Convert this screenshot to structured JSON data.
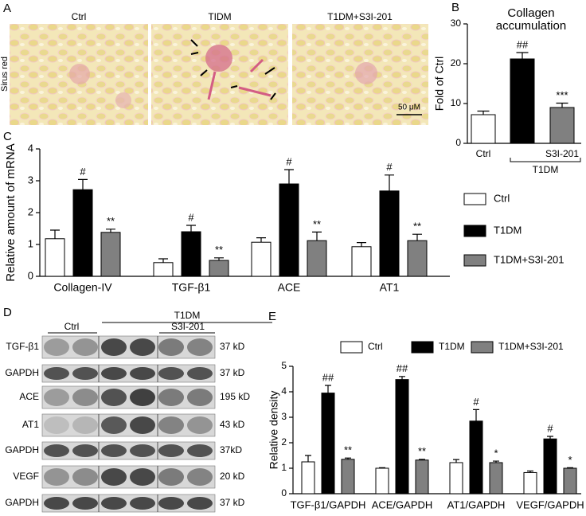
{
  "panel_a": {
    "label": "A",
    "images": [
      {
        "label": "Ctrl"
      },
      {
        "label": "TIDM"
      },
      {
        "label": "T1DM+S3I-201"
      }
    ],
    "stain": "Sirus red",
    "scale_bar": "50 μM"
  },
  "panel_d": {
    "label": "D",
    "header": {
      "group": "T1DM",
      "control": "Ctrl",
      "treated": "S3I-201"
    },
    "rows": [
      {
        "protein": "TGF-β1",
        "size": "37 kD"
      },
      {
        "protein": "GAPDH",
        "size": "37 kD"
      },
      {
        "protein": "ACE",
        "size": "195 kD"
      },
      {
        "protein": "AT1",
        "size": "43 kD"
      },
      {
        "protein": "GAPDH",
        "size": "37kD"
      },
      {
        "protein": "VEGF",
        "size": "20 kD"
      },
      {
        "protein": "GAPDH",
        "size": "37 kD"
      }
    ]
  },
  "chart_data": [
    {
      "type": "bar",
      "panel_label": "B",
      "title": [
        "Collagen",
        "accumulation"
      ],
      "y_label": "Fold of Ctrl",
      "categories": [
        "Ctrl",
        null,
        "S3I-201"
      ],
      "bracket_label": "T1DM",
      "values": [
        7.2,
        21.2,
        9.0
      ],
      "errors": [
        0.9,
        1.6,
        1.1
      ],
      "colors": [
        "#ffffff",
        "#000000",
        "#808080"
      ],
      "annotations": [
        null,
        "##",
        "***"
      ],
      "ylim": [
        0,
        30
      ],
      "yticks": [
        0,
        10,
        20,
        30
      ]
    },
    {
      "type": "grouped_bar",
      "panel_label": "C",
      "y_label": "Relative amount of mRNA",
      "categories": [
        "Collagen-IV",
        "TGF-β1",
        "ACE",
        "AT1"
      ],
      "series": [
        {
          "name": "Ctrl",
          "color": "#ffffff",
          "values": [
            1.18,
            0.43,
            1.07,
            0.93
          ],
          "errors": [
            0.27,
            0.12,
            0.14,
            0.13
          ]
        },
        {
          "name": "T1DM",
          "color": "#000000",
          "values": [
            2.72,
            1.4,
            2.9,
            2.68
          ],
          "errors": [
            0.32,
            0.2,
            0.45,
            0.5
          ],
          "annotations": [
            "#",
            "#",
            "#",
            "#"
          ]
        },
        {
          "name": "T1DM+S3I-201",
          "color": "#808080",
          "values": [
            1.38,
            0.5,
            1.12,
            1.12
          ],
          "errors": [
            0.1,
            0.08,
            0.27,
            0.2
          ],
          "annotations": [
            "**",
            "**",
            "**",
            "**"
          ]
        }
      ],
      "ylim": [
        0,
        4
      ],
      "yticks": [
        0,
        1,
        2,
        3,
        4
      ],
      "legend": "right"
    },
    {
      "type": "grouped_bar",
      "panel_label": "E",
      "y_label": "Relative density",
      "categories": [
        "TGF-β1/GAPDH",
        "ACE/GAPDH",
        "AT1/GAPDH",
        "VEGF/GAPDH"
      ],
      "series": [
        {
          "name": "Ctrl",
          "color": "#ffffff",
          "values": [
            1.25,
            1.0,
            1.22,
            0.83
          ],
          "errors": [
            0.25,
            0.02,
            0.12,
            0.06
          ]
        },
        {
          "name": "T1DM",
          "color": "#000000",
          "values": [
            3.95,
            4.48,
            2.85,
            2.15
          ],
          "errors": [
            0.3,
            0.12,
            0.45,
            0.1
          ],
          "annotations": [
            "##",
            "##",
            "#",
            "#"
          ]
        },
        {
          "name": "T1DM+S3I-201",
          "color": "#808080",
          "values": [
            1.35,
            1.32,
            1.22,
            1.0
          ],
          "errors": [
            0.05,
            0.03,
            0.06,
            0.02
          ],
          "annotations": [
            "**",
            "**",
            "*",
            "*"
          ]
        }
      ],
      "ylim": [
        0,
        5
      ],
      "yticks": [
        0,
        1,
        2,
        3,
        4,
        5
      ],
      "legend": "top"
    }
  ]
}
